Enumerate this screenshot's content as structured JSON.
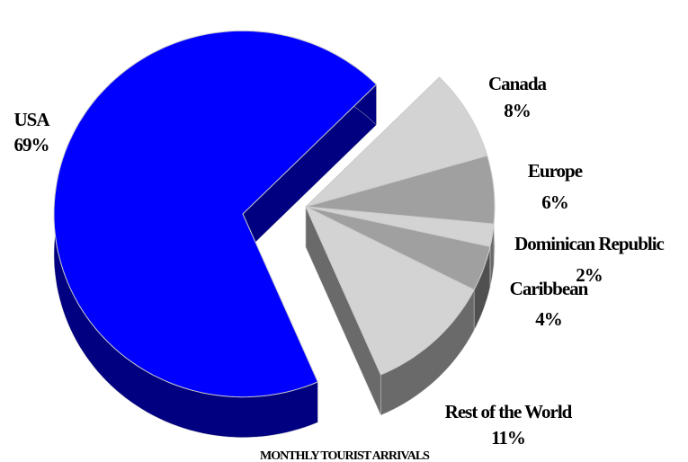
{
  "chart_data": {
    "type": "pie3d",
    "title": "MONTHLY TOURIST ARRIVALS",
    "categories": [
      "Canada",
      "Europe",
      "Dominican Republic",
      "Caribbean",
      "Rest of the World",
      "USA"
    ],
    "values": [
      8,
      6,
      2,
      4,
      11,
      69
    ],
    "value_labels": [
      "8%",
      "6%",
      "2%",
      "4%",
      "11%",
      "69%"
    ],
    "colors": [
      "#d3d3d3",
      "#a0a0a0",
      "#d3d3d3",
      "#a0a0a0",
      "#d3d3d3",
      "#0000ff"
    ]
  }
}
